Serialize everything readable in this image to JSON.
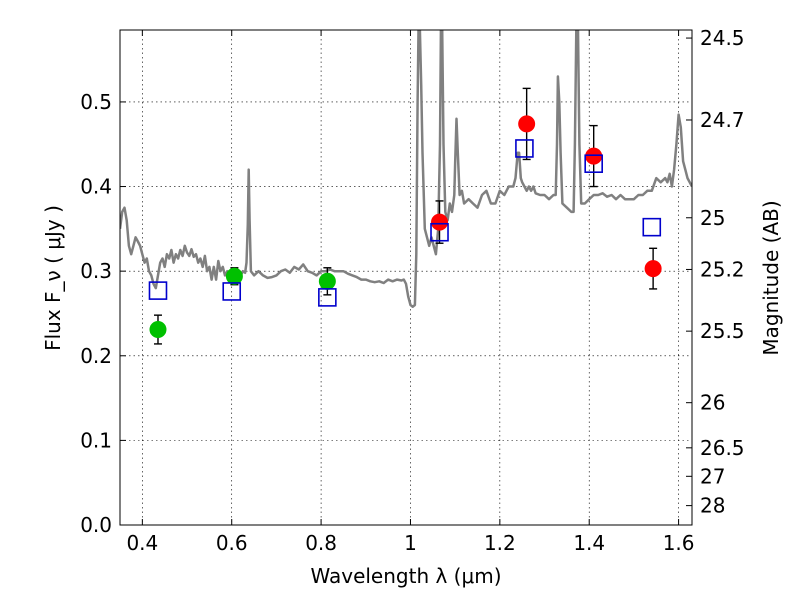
{
  "chart_data": {
    "type": "scatter",
    "title": "",
    "xlabel": "Wavelength  λ (μm)",
    "ylabel": "Flux  F_ν  ( μJy )",
    "y2label": "Magnitude (AB)",
    "xlim": [
      0.35,
      1.63
    ],
    "ylim": [
      0.0,
      0.585
    ],
    "grid": true,
    "x_ticks": [
      0.4,
      0.6,
      0.8,
      1.0,
      1.2,
      1.4,
      1.6
    ],
    "x_tick_labels": [
      "0.4",
      "0.6",
      "0.8",
      "1",
      "1.2",
      "1.4",
      "1.6"
    ],
    "y_ticks": [
      0.0,
      0.1,
      0.2,
      0.3,
      0.4,
      0.5
    ],
    "y_tick_labels": [
      "0.0",
      "0.1",
      "0.2",
      "0.3",
      "0.4",
      "0.5"
    ],
    "mag_ticks": [
      "24.5",
      "24.7",
      "25",
      "25.2",
      "25.5",
      "26",
      "26.5",
      "27",
      "28"
    ],
    "series": [
      {
        "marker": "circle",
        "color": "#00c000",
        "points": [
          {
            "x": 0.435,
            "y": 0.231,
            "yerr": 0.017
          },
          {
            "x": 0.606,
            "y": 0.294,
            "yerr": 0.01
          },
          {
            "x": 0.814,
            "y": 0.288,
            "yerr": 0.016
          }
        ]
      },
      {
        "marker": "circle",
        "color": "#ff0000",
        "points": [
          {
            "x": 1.065,
            "y": 0.358,
            "yerr": 0.025
          },
          {
            "x": 1.26,
            "y": 0.474,
            "yerr": 0.042
          },
          {
            "x": 1.41,
            "y": 0.436,
            "yerr": 0.036
          },
          {
            "x": 1.543,
            "y": 0.303,
            "yerr": 0.024
          }
        ]
      },
      {
        "marker": "open-square",
        "color": "#0000cc",
        "points": [
          {
            "x": 0.435,
            "y": 0.277
          },
          {
            "x": 0.6,
            "y": 0.276
          },
          {
            "x": 0.814,
            "y": 0.269
          },
          {
            "x": 1.065,
            "y": 0.346
          },
          {
            "x": 1.255,
            "y": 0.445
          },
          {
            "x": 1.41,
            "y": 0.427
          },
          {
            "x": 1.54,
            "y": 0.352
          }
        ]
      },
      {
        "marker": "line",
        "color": "#808080",
        "points": [
          [
            0.35,
            0.35
          ],
          [
            0.355,
            0.37
          ],
          [
            0.36,
            0.375
          ],
          [
            0.365,
            0.36
          ],
          [
            0.37,
            0.33
          ],
          [
            0.375,
            0.32
          ],
          [
            0.38,
            0.33
          ],
          [
            0.385,
            0.34
          ],
          [
            0.39,
            0.335
          ],
          [
            0.395,
            0.33
          ],
          [
            0.4,
            0.32
          ],
          [
            0.405,
            0.31
          ],
          [
            0.41,
            0.315
          ],
          [
            0.415,
            0.3
          ],
          [
            0.42,
            0.295
          ],
          [
            0.425,
            0.285
          ],
          [
            0.43,
            0.28
          ],
          [
            0.435,
            0.295
          ],
          [
            0.44,
            0.31
          ],
          [
            0.445,
            0.315
          ],
          [
            0.45,
            0.305
          ],
          [
            0.455,
            0.32
          ],
          [
            0.46,
            0.315
          ],
          [
            0.465,
            0.325
          ],
          [
            0.47,
            0.31
          ],
          [
            0.475,
            0.32
          ],
          [
            0.48,
            0.315
          ],
          [
            0.485,
            0.325
          ],
          [
            0.49,
            0.318
          ],
          [
            0.495,
            0.33
          ],
          [
            0.5,
            0.322
          ],
          [
            0.505,
            0.318
          ],
          [
            0.51,
            0.326
          ],
          [
            0.515,
            0.317
          ],
          [
            0.52,
            0.32
          ],
          [
            0.525,
            0.31
          ],
          [
            0.53,
            0.315
          ],
          [
            0.535,
            0.305
          ],
          [
            0.54,
            0.318
          ],
          [
            0.545,
            0.3
          ],
          [
            0.55,
            0.305
          ],
          [
            0.555,
            0.29
          ],
          [
            0.56,
            0.305
          ],
          [
            0.565,
            0.29
          ],
          [
            0.57,
            0.312
          ],
          [
            0.575,
            0.3
          ],
          [
            0.58,
            0.305
          ],
          [
            0.585,
            0.295
          ],
          [
            0.59,
            0.3
          ],
          [
            0.595,
            0.29
          ],
          [
            0.6,
            0.296
          ],
          [
            0.605,
            0.3
          ],
          [
            0.61,
            0.292
          ],
          [
            0.615,
            0.3
          ],
          [
            0.62,
            0.295
          ],
          [
            0.625,
            0.3
          ],
          [
            0.63,
            0.298
          ],
          [
            0.633,
            0.31
          ],
          [
            0.636,
            0.355
          ],
          [
            0.638,
            0.42
          ],
          [
            0.64,
            0.36
          ],
          [
            0.643,
            0.3
          ],
          [
            0.65,
            0.295
          ],
          [
            0.66,
            0.3
          ],
          [
            0.67,
            0.295
          ],
          [
            0.68,
            0.292
          ],
          [
            0.69,
            0.293
          ],
          [
            0.7,
            0.295
          ],
          [
            0.71,
            0.3
          ],
          [
            0.72,
            0.302
          ],
          [
            0.73,
            0.298
          ],
          [
            0.74,
            0.305
          ],
          [
            0.75,
            0.302
          ],
          [
            0.76,
            0.308
          ],
          [
            0.77,
            0.3
          ],
          [
            0.78,
            0.298
          ],
          [
            0.79,
            0.295
          ],
          [
            0.8,
            0.3
          ],
          [
            0.81,
            0.3
          ],
          [
            0.82,
            0.302
          ],
          [
            0.83,
            0.3
          ],
          [
            0.84,
            0.3
          ],
          [
            0.85,
            0.3
          ],
          [
            0.86,
            0.297
          ],
          [
            0.87,
            0.295
          ],
          [
            0.88,
            0.293
          ],
          [
            0.89,
            0.29
          ],
          [
            0.9,
            0.29
          ],
          [
            0.91,
            0.288
          ],
          [
            0.92,
            0.287
          ],
          [
            0.93,
            0.288
          ],
          [
            0.94,
            0.286
          ],
          [
            0.95,
            0.29
          ],
          [
            0.96,
            0.288
          ],
          [
            0.97,
            0.29
          ],
          [
            0.98,
            0.289
          ],
          [
            0.985,
            0.29
          ],
          [
            0.99,
            0.285
          ],
          [
            0.995,
            0.27
          ],
          [
            1.0,
            0.26
          ],
          [
            1.005,
            0.258
          ],
          [
            1.01,
            0.26
          ],
          [
            1.013,
            0.32
          ],
          [
            1.016,
            0.5
          ],
          [
            1.018,
            0.585
          ],
          [
            1.021,
            0.585
          ],
          [
            1.024,
            0.52
          ],
          [
            1.027,
            0.44
          ],
          [
            1.032,
            0.35
          ],
          [
            1.037,
            0.34
          ],
          [
            1.042,
            0.33
          ],
          [
            1.047,
            0.34
          ],
          [
            1.052,
            0.33
          ],
          [
            1.057,
            0.32
          ],
          [
            1.062,
            0.35
          ],
          [
            1.066,
            0.45
          ],
          [
            1.068,
            0.585
          ],
          [
            1.071,
            0.585
          ],
          [
            1.074,
            0.45
          ],
          [
            1.078,
            0.37
          ],
          [
            1.083,
            0.36
          ],
          [
            1.088,
            0.38
          ],
          [
            1.093,
            0.37
          ],
          [
            1.098,
            0.39
          ],
          [
            1.1,
            0.43
          ],
          [
            1.103,
            0.48
          ],
          [
            1.106,
            0.44
          ],
          [
            1.11,
            0.39
          ],
          [
            1.115,
            0.395
          ],
          [
            1.12,
            0.38
          ],
          [
            1.13,
            0.385
          ],
          [
            1.14,
            0.38
          ],
          [
            1.15,
            0.375
          ],
          [
            1.16,
            0.39
          ],
          [
            1.17,
            0.395
          ],
          [
            1.18,
            0.38
          ],
          [
            1.19,
            0.38
          ],
          [
            1.2,
            0.395
          ],
          [
            1.21,
            0.39
          ],
          [
            1.22,
            0.4
          ],
          [
            1.23,
            0.4
          ],
          [
            1.235,
            0.41
          ],
          [
            1.24,
            0.44
          ],
          [
            1.243,
            0.44
          ],
          [
            1.247,
            0.41
          ],
          [
            1.25,
            0.405
          ],
          [
            1.255,
            0.4
          ],
          [
            1.26,
            0.395
          ],
          [
            1.265,
            0.4
          ],
          [
            1.27,
            0.395
          ],
          [
            1.275,
            0.4
          ],
          [
            1.28,
            0.392
          ],
          [
            1.29,
            0.39
          ],
          [
            1.3,
            0.39
          ],
          [
            1.31,
            0.385
          ],
          [
            1.32,
            0.39
          ],
          [
            1.325,
            0.39
          ],
          [
            1.328,
            0.45
          ],
          [
            1.33,
            0.53
          ],
          [
            1.333,
            0.5
          ],
          [
            1.336,
            0.44
          ],
          [
            1.34,
            0.38
          ],
          [
            1.35,
            0.375
          ],
          [
            1.36,
            0.37
          ],
          [
            1.365,
            0.37
          ],
          [
            1.368,
            0.45
          ],
          [
            1.371,
            0.585
          ],
          [
            1.375,
            0.585
          ],
          [
            1.378,
            0.45
          ],
          [
            1.382,
            0.38
          ],
          [
            1.39,
            0.38
          ],
          [
            1.4,
            0.385
          ],
          [
            1.41,
            0.39
          ],
          [
            1.42,
            0.39
          ],
          [
            1.43,
            0.392
          ],
          [
            1.44,
            0.388
          ],
          [
            1.45,
            0.39
          ],
          [
            1.46,
            0.385
          ],
          [
            1.47,
            0.39
          ],
          [
            1.48,
            0.385
          ],
          [
            1.49,
            0.385
          ],
          [
            1.5,
            0.385
          ],
          [
            1.51,
            0.39
          ],
          [
            1.52,
            0.39
          ],
          [
            1.53,
            0.395
          ],
          [
            1.54,
            0.395
          ],
          [
            1.55,
            0.41
          ],
          [
            1.56,
            0.405
          ],
          [
            1.57,
            0.41
          ],
          [
            1.575,
            0.405
          ],
          [
            1.58,
            0.415
          ],
          [
            1.585,
            0.4
          ],
          [
            1.59,
            0.42
          ],
          [
            1.595,
            0.45
          ],
          [
            1.6,
            0.485
          ],
          [
            1.605,
            0.47
          ],
          [
            1.61,
            0.43
          ],
          [
            1.615,
            0.42
          ],
          [
            1.62,
            0.41
          ],
          [
            1.63,
            0.4
          ]
        ]
      }
    ]
  }
}
